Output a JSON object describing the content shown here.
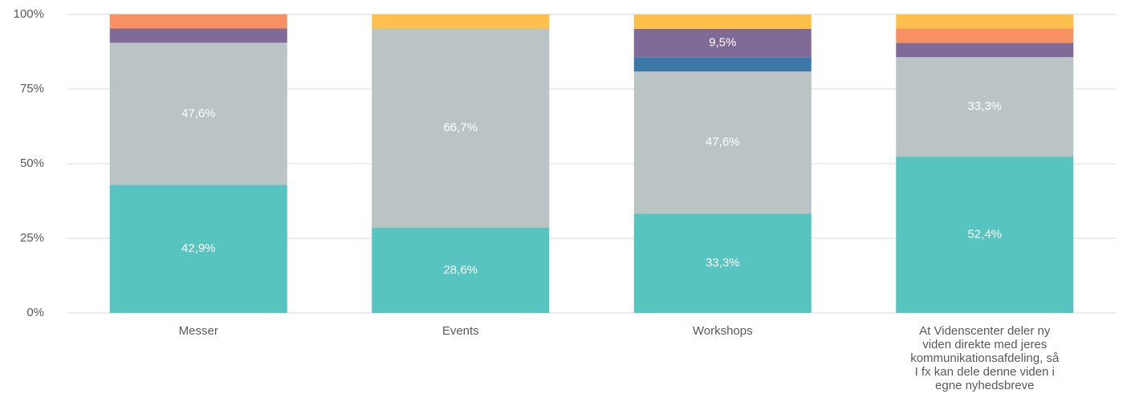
{
  "chart_data": {
    "type": "stacked_bar",
    "categories": [
      "Messer",
      "Events",
      "Workshops",
      "At Videnscenter deler ny viden direkte med jeres kommunikationsafdeling, så I fx kan dele denne viden i egne nyhedsbreve"
    ],
    "series": [
      {
        "color": "#58c4c0",
        "values": [
          42.9,
          28.6,
          33.3,
          52.4
        ],
        "value_labels": [
          "42,9%",
          "28,6%",
          "33,3%",
          "52,4%"
        ]
      },
      {
        "color": "#bac4c4",
        "values": [
          47.6,
          66.7,
          47.6,
          33.3
        ],
        "value_labels": [
          "47,6%",
          "66,7%",
          "47,6%",
          "33,3%"
        ]
      },
      {
        "color": "#3a78a8",
        "values": [
          null,
          null,
          4.8,
          null
        ]
      },
      {
        "color": "#7f6a98",
        "values": [
          4.8,
          null,
          9.5,
          4.8
        ],
        "value_labels": [
          null,
          null,
          "9,5%",
          null
        ]
      },
      {
        "color": "#f79163",
        "values": [
          4.8,
          null,
          null,
          4.8
        ]
      },
      {
        "color": "#fdc04a",
        "values": [
          null,
          4.8,
          4.8,
          4.8
        ]
      }
    ],
    "ylim": [
      0,
      100
    ],
    "yticks": [
      {
        "value": 0,
        "label": "0%"
      },
      {
        "value": 25,
        "label": "25%"
      },
      {
        "value": 50,
        "label": "50%"
      },
      {
        "value": 75,
        "label": "75%"
      },
      {
        "value": 100,
        "label": "100%"
      }
    ],
    "grid": true
  }
}
